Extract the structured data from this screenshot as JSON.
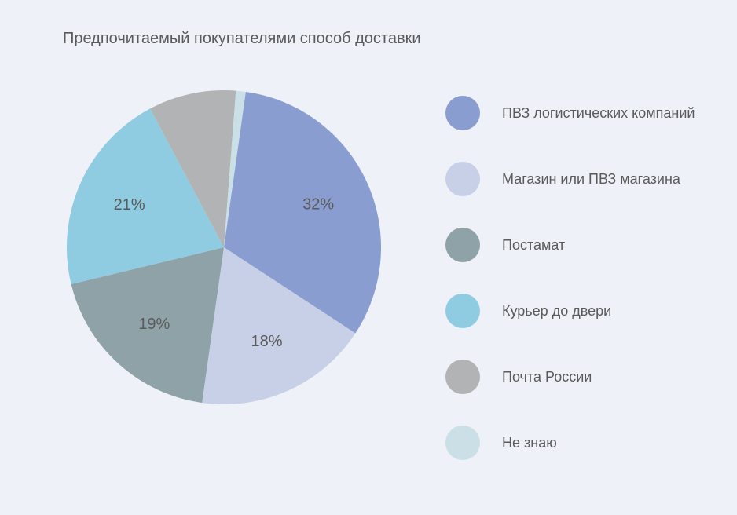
{
  "chart": {
    "type": "pie",
    "title": "Предпочитаемый покупателями способ доставки",
    "title_fontsize": 20,
    "title_color": "#5a5a5a",
    "background_color": "#eef1f7",
    "pie_radius": 200,
    "start_angle_deg": 8,
    "slices": [
      {
        "label": "ПВЗ логистических компаний",
        "value": 32,
        "display": "32%",
        "color": "#8a9dd1"
      },
      {
        "label": "Магазин или ПВЗ магазина",
        "value": 18,
        "display": "18%",
        "color": "#c7d0e6"
      },
      {
        "label": "Постамат",
        "value": 19,
        "display": "19%",
        "color": "#8ea2a8"
      },
      {
        "label": "Курьер до двери",
        "value": 21,
        "display": "21%",
        "color": "#8fcce2"
      },
      {
        "label": "Почта России",
        "value": 9,
        "display": "9%",
        "color": "#b1b3b4"
      },
      {
        "label": "Не знаю",
        "value": 1,
        "display": "1%",
        "color": "#cadfe6"
      }
    ],
    "label_fontsize": 20,
    "label_color": "#5a5a5a",
    "legend": {
      "fontsize": 18,
      "swatch_diameter": 44,
      "item_spacing": 40,
      "text_color": "#5a5a5a"
    }
  }
}
